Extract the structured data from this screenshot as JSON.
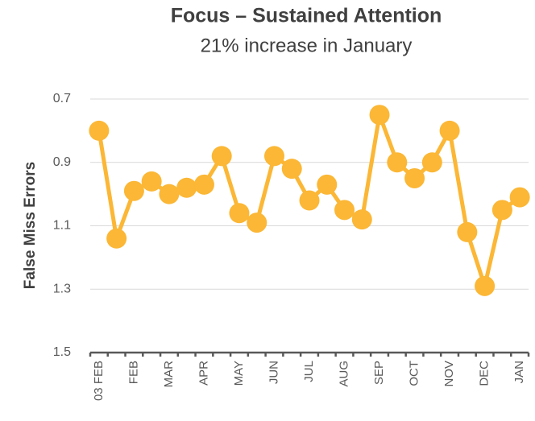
{
  "chart_data": {
    "type": "line",
    "title": "Focus – Sustained Attention",
    "subtitle": "21% increase in January",
    "y_label": "False Miss Errors",
    "categories": [
      "03 FEB",
      null,
      "FEB",
      null,
      "MAR",
      null,
      "APR",
      null,
      "MAY",
      null,
      "JUN",
      null,
      "JUL",
      null,
      "AUG",
      null,
      "SEP",
      null,
      "OCT",
      null,
      "NOV",
      null,
      "DEC",
      null,
      "JAN"
    ],
    "series": [
      {
        "name": "False Miss Errors",
        "color": "#fbb735",
        "values": [
          0.8,
          1.14,
          0.99,
          0.96,
          1.0,
          0.98,
          0.97,
          0.88,
          1.06,
          1.09,
          0.88,
          0.92,
          1.02,
          0.97,
          1.05,
          1.08,
          0.75,
          0.9,
          0.95,
          0.9,
          0.8,
          1.12,
          1.29,
          1.05,
          1.01
        ]
      }
    ],
    "ylim": [
      0.7,
      1.5
    ],
    "yticks": [
      0.7,
      0.9,
      1.1,
      1.3,
      1.5
    ],
    "y_inverted": true,
    "grid": true
  }
}
